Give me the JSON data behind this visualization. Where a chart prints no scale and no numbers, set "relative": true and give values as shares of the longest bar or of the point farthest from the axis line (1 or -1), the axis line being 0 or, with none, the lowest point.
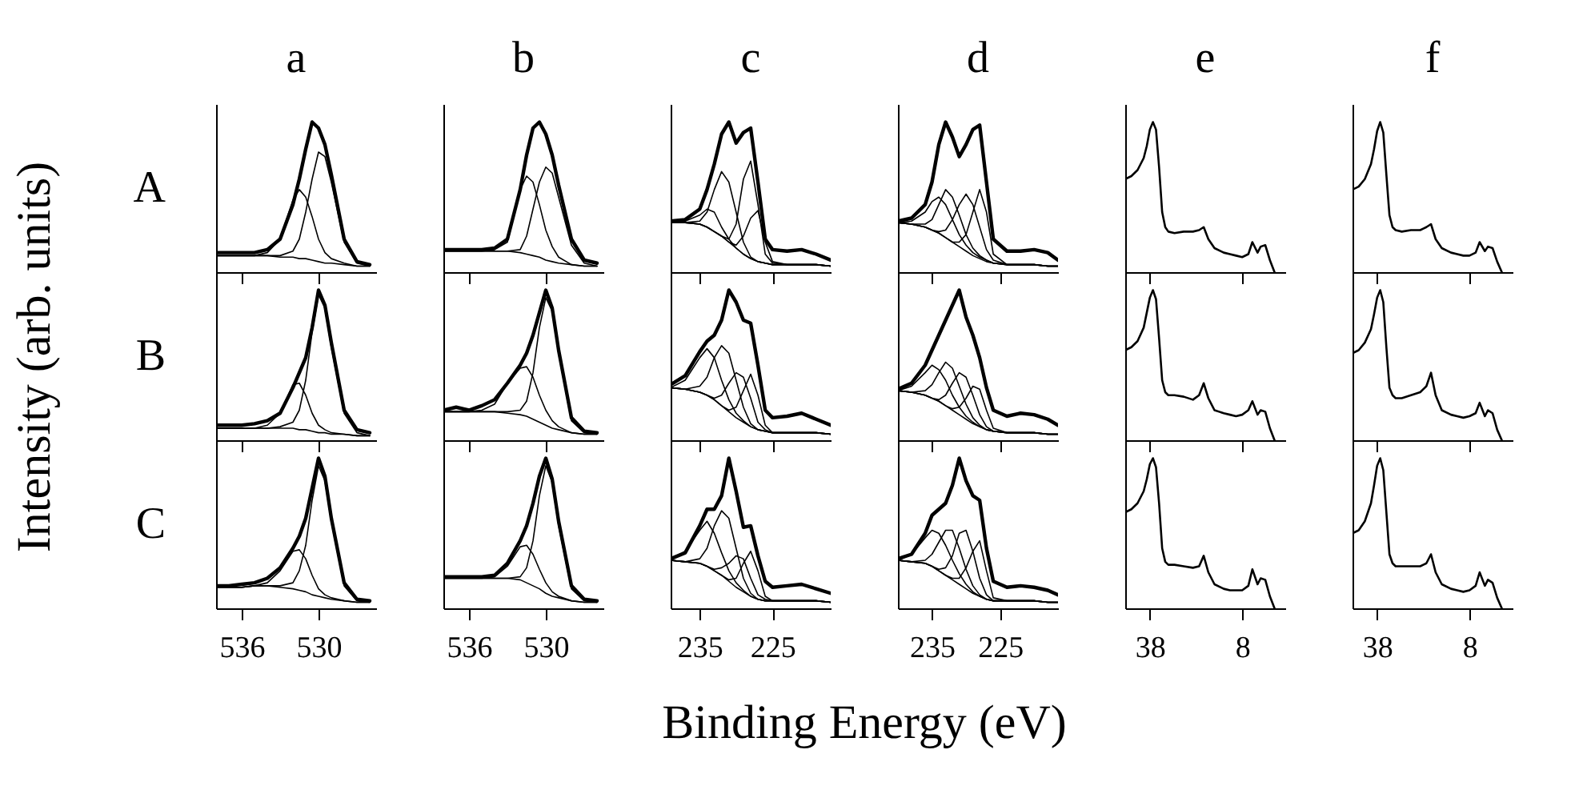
{
  "chart_data": [
    {
      "type": "line",
      "relative": true,
      "title": "a",
      "ylabel": "A",
      "annotations": [
        "Intensity (arb. units)",
        "Binding Energy (eV)"
      ],
      "x": [
        538,
        537,
        536,
        535,
        534,
        533,
        532,
        531.5,
        531,
        530.5,
        530,
        529.5,
        529,
        528,
        527,
        526
      ],
      "xlim": [
        538,
        525.5
      ],
      "xticks": [
        536,
        530
      ],
      "tick_labels": false,
      "series": [
        {
          "color": "#000000",
          "values": [
            0.13,
            0.13,
            0.13,
            0.13,
            0.15,
            0.22,
            0.45,
            0.62,
            0.82,
            1.0,
            0.96,
            0.85,
            0.65,
            0.22,
            0.07,
            0.05
          ]
        },
        {
          "color": "#000000",
          "values": [
            0.11,
            0.11,
            0.11,
            0.11,
            0.11,
            0.1,
            0.1,
            0.09,
            0.09,
            0.08,
            0.07,
            0.06,
            0.06,
            0.05,
            0.04,
            0.04
          ]
        },
        {
          "color": "#000000",
          "values": [
            0.11,
            0.11,
            0.11,
            0.11,
            0.13,
            0.22,
            0.48,
            0.55,
            0.5,
            0.37,
            0.22,
            0.13,
            0.09,
            0.06,
            0.04,
            0.04
          ]
        },
        {
          "color": "#000000",
          "values": [
            0.11,
            0.11,
            0.11,
            0.11,
            0.11,
            0.11,
            0.14,
            0.22,
            0.4,
            0.62,
            0.8,
            0.77,
            0.6,
            0.2,
            0.06,
            0.04
          ]
        }
      ]
    },
    {
      "type": "line",
      "relative": true,
      "title": "b",
      "x": [
        538,
        537,
        536,
        535,
        534,
        533,
        532,
        531.5,
        531,
        530.5,
        530,
        529.5,
        529,
        528,
        527,
        526
      ],
      "xlim": [
        538,
        525.5
      ],
      "xticks": [
        536,
        530
      ],
      "tick_labels": false,
      "series": [
        {
          "color": "#000000",
          "values": [
            0.15,
            0.15,
            0.15,
            0.15,
            0.16,
            0.22,
            0.55,
            0.78,
            0.96,
            1.0,
            0.92,
            0.78,
            0.58,
            0.22,
            0.08,
            0.06
          ]
        },
        {
          "color": "#000000",
          "values": [
            0.14,
            0.14,
            0.14,
            0.14,
            0.14,
            0.14,
            0.13,
            0.12,
            0.11,
            0.1,
            0.08,
            0.07,
            0.06,
            0.05,
            0.04,
            0.04
          ]
        },
        {
          "color": "#000000",
          "values": [
            0.14,
            0.14,
            0.14,
            0.14,
            0.15,
            0.2,
            0.55,
            0.64,
            0.6,
            0.45,
            0.28,
            0.17,
            0.1,
            0.05,
            0.04,
            0.04
          ]
        },
        {
          "color": "#000000",
          "values": [
            0.14,
            0.14,
            0.14,
            0.14,
            0.14,
            0.14,
            0.15,
            0.24,
            0.42,
            0.6,
            0.7,
            0.66,
            0.5,
            0.18,
            0.06,
            0.04
          ]
        }
      ]
    },
    {
      "type": "line",
      "relative": true,
      "title": "c",
      "x": [
        239,
        237,
        235,
        234,
        233,
        232,
        231,
        230,
        229,
        228,
        227,
        226,
        225,
        223,
        221,
        219,
        217
      ],
      "xlim": [
        239,
        217
      ],
      "xticks": [
        235,
        225
      ],
      "tick_labels": false,
      "series": [
        {
          "color": "#000000",
          "values": [
            0.34,
            0.35,
            0.42,
            0.55,
            0.72,
            0.92,
            1.0,
            0.86,
            0.93,
            0.96,
            0.6,
            0.22,
            0.15,
            0.14,
            0.15,
            0.12,
            0.08
          ]
        },
        {
          "color": "#000000",
          "values": [
            0.33,
            0.33,
            0.32,
            0.3,
            0.27,
            0.24,
            0.2,
            0.16,
            0.12,
            0.09,
            0.07,
            0.06,
            0.05,
            0.05,
            0.05,
            0.05,
            0.04
          ]
        },
        {
          "color": "#000000",
          "values": [
            0.33,
            0.34,
            0.38,
            0.42,
            0.4,
            0.3,
            0.22,
            0.16,
            0.12,
            0.09,
            0.07,
            0.06,
            0.05,
            0.05,
            0.05,
            0.05,
            0.04
          ]
        },
        {
          "color": "#000000",
          "values": [
            0.33,
            0.33,
            0.34,
            0.4,
            0.55,
            0.67,
            0.6,
            0.4,
            0.2,
            0.1,
            0.07,
            0.06,
            0.05,
            0.05,
            0.05,
            0.05,
            0.04
          ]
        },
        {
          "color": "#000000",
          "values": [
            0.33,
            0.33,
            0.32,
            0.3,
            0.27,
            0.24,
            0.22,
            0.32,
            0.62,
            0.74,
            0.45,
            0.12,
            0.06,
            0.05,
            0.05,
            0.05,
            0.04
          ]
        },
        {
          "color": "#000000",
          "values": [
            0.33,
            0.33,
            0.32,
            0.3,
            0.27,
            0.24,
            0.2,
            0.18,
            0.24,
            0.36,
            0.41,
            0.2,
            0.07,
            0.05,
            0.05,
            0.05,
            0.04
          ]
        }
      ]
    },
    {
      "type": "line",
      "relative": true,
      "title": "d",
      "x": [
        240,
        238,
        236,
        235,
        234,
        233,
        232,
        231,
        230,
        229,
        228,
        227,
        226,
        224,
        222,
        220,
        218,
        216.5
      ],
      "xlim": [
        240,
        216.5
      ],
      "xticks": [
        235,
        225
      ],
      "tick_labels": false,
      "series": [
        {
          "color": "#000000",
          "values": [
            0.34,
            0.36,
            0.45,
            0.6,
            0.85,
            1.0,
            0.9,
            0.77,
            0.85,
            0.95,
            0.98,
            0.6,
            0.22,
            0.14,
            0.14,
            0.15,
            0.13,
            0.08
          ]
        },
        {
          "color": "#000000",
          "values": [
            0.33,
            0.32,
            0.3,
            0.28,
            0.26,
            0.23,
            0.2,
            0.17,
            0.14,
            0.11,
            0.09,
            0.07,
            0.06,
            0.05,
            0.05,
            0.05,
            0.04,
            0.04
          ]
        },
        {
          "color": "#000000",
          "values": [
            0.33,
            0.34,
            0.4,
            0.47,
            0.5,
            0.45,
            0.35,
            0.25,
            0.18,
            0.13,
            0.1,
            0.08,
            0.06,
            0.05,
            0.05,
            0.05,
            0.04,
            0.04
          ]
        },
        {
          "color": "#000000",
          "values": [
            0.33,
            0.32,
            0.32,
            0.35,
            0.45,
            0.55,
            0.5,
            0.38,
            0.25,
            0.16,
            0.11,
            0.08,
            0.06,
            0.05,
            0.05,
            0.05,
            0.04,
            0.04
          ]
        },
        {
          "color": "#000000",
          "values": [
            0.33,
            0.32,
            0.3,
            0.28,
            0.27,
            0.28,
            0.35,
            0.45,
            0.52,
            0.45,
            0.3,
            0.15,
            0.08,
            0.05,
            0.05,
            0.05,
            0.04,
            0.04
          ]
        },
        {
          "color": "#000000",
          "values": [
            0.33,
            0.32,
            0.3,
            0.28,
            0.26,
            0.23,
            0.2,
            0.2,
            0.25,
            0.4,
            0.55,
            0.4,
            0.12,
            0.05,
            0.05,
            0.05,
            0.04,
            0.04
          ]
        }
      ]
    },
    {
      "type": "line",
      "relative": true,
      "title": "e",
      "x": [
        46,
        44,
        42,
        40,
        39,
        38,
        37,
        36,
        35,
        34,
        33,
        32,
        30,
        27,
        24,
        22,
        20.5,
        19,
        17,
        14,
        12,
        10,
        8,
        6,
        4.7,
        3,
        2,
        0.5,
        -1,
        -2.5
      ],
      "xlim": [
        46,
        -6
      ],
      "xticks": [
        38,
        8
      ],
      "tick_labels": false,
      "series": [
        {
          "color": "#000000",
          "values": [
            0.62,
            0.64,
            0.68,
            0.76,
            0.84,
            0.95,
            1.0,
            0.95,
            0.7,
            0.4,
            0.3,
            0.27,
            0.26,
            0.27,
            0.27,
            0.28,
            0.3,
            0.22,
            0.16,
            0.13,
            0.12,
            0.11,
            0.1,
            0.12,
            0.2,
            0.13,
            0.17,
            0.18,
            0.08,
            0.0
          ]
        }
      ]
    },
    {
      "type": "line",
      "relative": true,
      "title": "f",
      "x": [
        46,
        44,
        42,
        40,
        39,
        38,
        37,
        36,
        35,
        34,
        33,
        32,
        30,
        27,
        24,
        22,
        20.5,
        19,
        17,
        14,
        12,
        10,
        8,
        6,
        4.7,
        3,
        2,
        0.5,
        -1,
        -2.5
      ],
      "xlim": [
        46,
        -6
      ],
      "xticks": [
        38,
        8
      ],
      "tick_labels": false,
      "series": [
        {
          "color": "#000000",
          "values": [
            0.55,
            0.57,
            0.62,
            0.72,
            0.82,
            0.94,
            1.0,
            0.93,
            0.65,
            0.38,
            0.3,
            0.28,
            0.27,
            0.28,
            0.28,
            0.3,
            0.32,
            0.22,
            0.16,
            0.13,
            0.12,
            0.11,
            0.11,
            0.13,
            0.2,
            0.14,
            0.17,
            0.16,
            0.07,
            0.0
          ]
        }
      ]
    },
    {
      "type": "line",
      "relative": true,
      "ylabel": "B",
      "x": [
        538,
        537,
        536,
        535,
        534,
        533,
        532,
        531.5,
        531,
        530.5,
        530,
        529.5,
        529,
        528,
        527,
        526
      ],
      "xlim": [
        538,
        525.5
      ],
      "xticks": [
        536,
        530
      ],
      "tick_labels": false,
      "series": [
        {
          "color": "#000000",
          "values": [
            0.1,
            0.1,
            0.1,
            0.11,
            0.13,
            0.18,
            0.35,
            0.45,
            0.55,
            0.75,
            1.0,
            0.9,
            0.65,
            0.2,
            0.07,
            0.05
          ]
        },
        {
          "color": "#000000",
          "values": [
            0.08,
            0.08,
            0.08,
            0.08,
            0.08,
            0.08,
            0.08,
            0.07,
            0.07,
            0.06,
            0.05,
            0.05,
            0.04,
            0.04,
            0.03,
            0.03
          ]
        },
        {
          "color": "#000000",
          "values": [
            0.08,
            0.08,
            0.08,
            0.08,
            0.1,
            0.18,
            0.37,
            0.38,
            0.3,
            0.18,
            0.1,
            0.07,
            0.05,
            0.04,
            0.03,
            0.03
          ]
        },
        {
          "color": "#000000",
          "values": [
            0.08,
            0.08,
            0.08,
            0.08,
            0.08,
            0.09,
            0.12,
            0.2,
            0.4,
            0.72,
            0.97,
            0.88,
            0.62,
            0.18,
            0.05,
            0.03
          ]
        }
      ]
    },
    {
      "type": "line",
      "relative": true,
      "x": [
        538,
        537,
        536,
        535,
        534,
        533,
        532,
        531.5,
        531,
        530.5,
        530,
        529.5,
        529,
        528,
        527,
        526
      ],
      "xlim": [
        538,
        525.5
      ],
      "xticks": [
        536,
        530
      ],
      "tick_labels": false,
      "series": [
        {
          "color": "#000000",
          "values": [
            0.2,
            0.22,
            0.2,
            0.23,
            0.27,
            0.38,
            0.5,
            0.58,
            0.7,
            0.85,
            1.0,
            0.88,
            0.6,
            0.15,
            0.06,
            0.05
          ]
        },
        {
          "color": "#000000",
          "values": [
            0.19,
            0.19,
            0.19,
            0.19,
            0.19,
            0.18,
            0.17,
            0.16,
            0.14,
            0.12,
            0.1,
            0.08,
            0.07,
            0.05,
            0.04,
            0.04
          ]
        },
        {
          "color": "#000000",
          "values": [
            0.19,
            0.19,
            0.19,
            0.2,
            0.24,
            0.38,
            0.48,
            0.49,
            0.42,
            0.3,
            0.2,
            0.13,
            0.09,
            0.05,
            0.04,
            0.04
          ]
        },
        {
          "color": "#000000",
          "values": [
            0.19,
            0.19,
            0.19,
            0.19,
            0.19,
            0.19,
            0.2,
            0.26,
            0.45,
            0.75,
            0.95,
            0.86,
            0.58,
            0.13,
            0.05,
            0.04
          ]
        }
      ]
    },
    {
      "type": "line",
      "relative": true,
      "x": [
        239,
        237,
        235,
        234,
        233,
        232,
        231,
        230,
        229,
        228,
        227,
        226,
        225,
        223,
        221,
        219,
        217
      ],
      "xlim": [
        239,
        217
      ],
      "xticks": [
        235,
        225
      ],
      "tick_labels": false,
      "series": [
        {
          "color": "#000000",
          "values": [
            0.37,
            0.43,
            0.59,
            0.66,
            0.7,
            0.8,
            1.0,
            0.92,
            0.8,
            0.78,
            0.5,
            0.2,
            0.15,
            0.16,
            0.18,
            0.14,
            0.1
          ]
        },
        {
          "color": "#000000",
          "values": [
            0.35,
            0.34,
            0.32,
            0.3,
            0.27,
            0.23,
            0.19,
            0.15,
            0.12,
            0.09,
            0.07,
            0.06,
            0.05,
            0.05,
            0.05,
            0.05,
            0.04
          ]
        },
        {
          "color": "#000000",
          "values": [
            0.35,
            0.4,
            0.55,
            0.61,
            0.55,
            0.4,
            0.27,
            0.18,
            0.13,
            0.09,
            0.07,
            0.06,
            0.05,
            0.05,
            0.05,
            0.05,
            0.04
          ]
        },
        {
          "color": "#000000",
          "values": [
            0.35,
            0.34,
            0.36,
            0.42,
            0.55,
            0.63,
            0.58,
            0.4,
            0.22,
            0.11,
            0.07,
            0.06,
            0.05,
            0.05,
            0.05,
            0.05,
            0.04
          ]
        },
        {
          "color": "#000000",
          "values": [
            0.35,
            0.34,
            0.32,
            0.3,
            0.28,
            0.3,
            0.38,
            0.45,
            0.42,
            0.28,
            0.12,
            0.07,
            0.05,
            0.05,
            0.05,
            0.05,
            0.04
          ]
        },
        {
          "color": "#000000",
          "values": [
            0.35,
            0.34,
            0.32,
            0.3,
            0.27,
            0.23,
            0.2,
            0.22,
            0.33,
            0.44,
            0.3,
            0.1,
            0.05,
            0.05,
            0.05,
            0.05,
            0.04
          ]
        }
      ]
    },
    {
      "type": "line",
      "relative": true,
      "x": [
        240,
        238,
        236,
        235,
        234,
        233,
        232,
        231,
        230,
        229,
        228,
        227,
        226,
        224,
        222,
        220,
        218,
        216.5
      ],
      "xlim": [
        240,
        216.5
      ],
      "xticks": [
        235,
        225
      ],
      "tick_labels": false,
      "series": [
        {
          "color": "#000000",
          "values": [
            0.34,
            0.38,
            0.5,
            0.6,
            0.7,
            0.8,
            0.9,
            1.0,
            0.82,
            0.7,
            0.55,
            0.35,
            0.2,
            0.16,
            0.18,
            0.17,
            0.14,
            0.1
          ]
        },
        {
          "color": "#000000",
          "values": [
            0.33,
            0.32,
            0.3,
            0.28,
            0.26,
            0.23,
            0.2,
            0.17,
            0.14,
            0.11,
            0.09,
            0.07,
            0.06,
            0.05,
            0.05,
            0.05,
            0.04,
            0.04
          ]
        },
        {
          "color": "#000000",
          "values": [
            0.33,
            0.36,
            0.45,
            0.5,
            0.47,
            0.4,
            0.3,
            0.22,
            0.16,
            0.12,
            0.09,
            0.07,
            0.06,
            0.05,
            0.05,
            0.05,
            0.04,
            0.04
          ]
        },
        {
          "color": "#000000",
          "values": [
            0.33,
            0.32,
            0.33,
            0.37,
            0.45,
            0.52,
            0.48,
            0.36,
            0.24,
            0.15,
            0.1,
            0.07,
            0.06,
            0.05,
            0.05,
            0.05,
            0.04,
            0.04
          ]
        },
        {
          "color": "#000000",
          "values": [
            0.33,
            0.32,
            0.3,
            0.28,
            0.27,
            0.3,
            0.38,
            0.45,
            0.42,
            0.3,
            0.17,
            0.09,
            0.06,
            0.05,
            0.05,
            0.05,
            0.04,
            0.04
          ]
        },
        {
          "color": "#000000",
          "values": [
            0.33,
            0.32,
            0.3,
            0.28,
            0.26,
            0.23,
            0.21,
            0.22,
            0.28,
            0.36,
            0.34,
            0.2,
            0.08,
            0.05,
            0.05,
            0.05,
            0.04,
            0.04
          ]
        }
      ]
    },
    {
      "type": "line",
      "relative": true,
      "x": [
        46,
        44,
        42,
        40,
        39,
        38,
        37,
        36,
        35,
        34,
        33,
        32,
        30,
        27,
        24,
        22,
        20.5,
        19,
        17,
        14,
        12,
        10,
        8,
        6,
        4.7,
        3,
        2,
        0.5,
        -1,
        -2.5
      ],
      "xlim": [
        46,
        -6
      ],
      "xticks": [
        38,
        8
      ],
      "tick_labels": false,
      "series": [
        {
          "color": "#000000",
          "values": [
            0.6,
            0.62,
            0.66,
            0.75,
            0.85,
            0.95,
            1.0,
            0.94,
            0.68,
            0.4,
            0.32,
            0.3,
            0.3,
            0.29,
            0.27,
            0.3,
            0.38,
            0.28,
            0.2,
            0.18,
            0.17,
            0.16,
            0.17,
            0.2,
            0.26,
            0.17,
            0.2,
            0.19,
            0.08,
            0.0
          ]
        }
      ]
    },
    {
      "type": "line",
      "relative": true,
      "x": [
        46,
        44,
        42,
        40,
        39,
        38,
        37,
        36,
        35,
        34,
        33,
        32,
        30,
        27,
        24,
        22,
        20.5,
        19,
        17,
        14,
        12,
        10,
        8,
        6,
        4.7,
        3,
        2,
        0.5,
        -1,
        -2.5
      ],
      "xlim": [
        46,
        -6
      ],
      "xticks": [
        38,
        8
      ],
      "tick_labels": false,
      "series": [
        {
          "color": "#000000",
          "values": [
            0.58,
            0.6,
            0.65,
            0.74,
            0.84,
            0.95,
            1.0,
            0.92,
            0.62,
            0.35,
            0.3,
            0.28,
            0.28,
            0.3,
            0.32,
            0.36,
            0.45,
            0.3,
            0.2,
            0.17,
            0.16,
            0.15,
            0.16,
            0.18,
            0.25,
            0.16,
            0.2,
            0.18,
            0.07,
            0.0
          ]
        }
      ]
    },
    {
      "type": "line",
      "relative": true,
      "ylabel": "C",
      "x": [
        538,
        537,
        536,
        535,
        534,
        533,
        532,
        531.5,
        531,
        530.5,
        530,
        529.5,
        529,
        528,
        527,
        526
      ],
      "xlim": [
        538,
        525.5
      ],
      "xticks": [
        536,
        530
      ],
      "tick_labels": "x",
      "series": [
        {
          "color": "#000000",
          "values": [
            0.15,
            0.15,
            0.16,
            0.17,
            0.2,
            0.27,
            0.4,
            0.48,
            0.6,
            0.8,
            1.0,
            0.88,
            0.6,
            0.17,
            0.06,
            0.05
          ]
        },
        {
          "color": "#000000",
          "values": [
            0.14,
            0.14,
            0.14,
            0.15,
            0.15,
            0.14,
            0.13,
            0.12,
            0.11,
            0.09,
            0.08,
            0.07,
            0.06,
            0.05,
            0.04,
            0.04
          ]
        },
        {
          "color": "#000000",
          "values": [
            0.14,
            0.14,
            0.14,
            0.15,
            0.17,
            0.25,
            0.38,
            0.39,
            0.33,
            0.22,
            0.13,
            0.09,
            0.07,
            0.05,
            0.04,
            0.04
          ]
        },
        {
          "color": "#000000",
          "values": [
            0.14,
            0.14,
            0.14,
            0.15,
            0.15,
            0.15,
            0.17,
            0.25,
            0.42,
            0.72,
            0.95,
            0.85,
            0.58,
            0.15,
            0.05,
            0.04
          ]
        }
      ]
    },
    {
      "type": "line",
      "relative": true,
      "x": [
        538,
        537,
        536,
        535,
        534,
        533,
        532,
        531.5,
        531,
        530.5,
        530,
        529.5,
        529,
        528,
        527,
        526
      ],
      "xlim": [
        538,
        525.5
      ],
      "xticks": [
        536,
        530
      ],
      "tick_labels": "x",
      "series": [
        {
          "color": "#000000",
          "values": [
            0.21,
            0.21,
            0.21,
            0.21,
            0.22,
            0.3,
            0.45,
            0.55,
            0.7,
            0.88,
            1.0,
            0.86,
            0.58,
            0.15,
            0.06,
            0.05
          ]
        },
        {
          "color": "#000000",
          "values": [
            0.2,
            0.2,
            0.2,
            0.2,
            0.2,
            0.2,
            0.19,
            0.17,
            0.15,
            0.13,
            0.1,
            0.08,
            0.07,
            0.05,
            0.04,
            0.04
          ]
        },
        {
          "color": "#000000",
          "values": [
            0.2,
            0.2,
            0.2,
            0.2,
            0.21,
            0.28,
            0.41,
            0.42,
            0.36,
            0.26,
            0.17,
            0.11,
            0.08,
            0.05,
            0.04,
            0.04
          ]
        },
        {
          "color": "#000000",
          "values": [
            0.2,
            0.2,
            0.2,
            0.2,
            0.2,
            0.2,
            0.21,
            0.27,
            0.45,
            0.75,
            0.95,
            0.84,
            0.55,
            0.13,
            0.05,
            0.04
          ]
        }
      ]
    },
    {
      "type": "line",
      "relative": true,
      "x": [
        239,
        237,
        235,
        234,
        233,
        232,
        231,
        230,
        229,
        228,
        227,
        226,
        225,
        223,
        221,
        219,
        217
      ],
      "xlim": [
        239,
        217
      ],
      "xticks": [
        235,
        225
      ],
      "tick_labels": "x",
      "series": [
        {
          "color": "#000000",
          "values": [
            0.33,
            0.37,
            0.55,
            0.66,
            0.66,
            0.75,
            1.0,
            0.78,
            0.54,
            0.55,
            0.35,
            0.18,
            0.14,
            0.15,
            0.16,
            0.13,
            0.1
          ]
        },
        {
          "color": "#000000",
          "values": [
            0.32,
            0.31,
            0.3,
            0.28,
            0.25,
            0.22,
            0.18,
            0.14,
            0.11,
            0.08,
            0.06,
            0.05,
            0.05,
            0.05,
            0.05,
            0.05,
            0.04
          ]
        },
        {
          "color": "#000000",
          "values": [
            0.32,
            0.38,
            0.52,
            0.58,
            0.5,
            0.37,
            0.25,
            0.17,
            0.12,
            0.08,
            0.06,
            0.05,
            0.05,
            0.05,
            0.05,
            0.05,
            0.04
          ]
        },
        {
          "color": "#000000",
          "values": [
            0.32,
            0.31,
            0.33,
            0.4,
            0.55,
            0.65,
            0.6,
            0.4,
            0.2,
            0.1,
            0.06,
            0.05,
            0.05,
            0.05,
            0.05,
            0.05,
            0.04
          ]
        },
        {
          "color": "#000000",
          "values": [
            0.32,
            0.31,
            0.3,
            0.28,
            0.26,
            0.27,
            0.3,
            0.35,
            0.33,
            0.2,
            0.09,
            0.06,
            0.05,
            0.05,
            0.05,
            0.05,
            0.04
          ]
        },
        {
          "color": "#000000",
          "values": [
            0.32,
            0.31,
            0.3,
            0.28,
            0.25,
            0.22,
            0.19,
            0.2,
            0.3,
            0.38,
            0.25,
            0.08,
            0.05,
            0.05,
            0.05,
            0.05,
            0.04
          ]
        }
      ]
    },
    {
      "type": "line",
      "relative": true,
      "x": [
        240,
        238,
        236,
        235,
        234,
        233,
        232,
        231,
        230,
        229,
        228,
        227,
        226,
        224,
        222,
        220,
        218,
        216.5
      ],
      "xlim": [
        240,
        216.5
      ],
      "xticks": [
        235,
        225
      ],
      "tick_labels": "x",
      "series": [
        {
          "color": "#000000",
          "values": [
            0.33,
            0.36,
            0.5,
            0.62,
            0.66,
            0.7,
            0.82,
            1.0,
            0.85,
            0.75,
            0.72,
            0.4,
            0.18,
            0.14,
            0.15,
            0.14,
            0.12,
            0.09
          ]
        },
        {
          "color": "#000000",
          "values": [
            0.32,
            0.31,
            0.3,
            0.28,
            0.25,
            0.22,
            0.19,
            0.16,
            0.13,
            0.1,
            0.08,
            0.06,
            0.05,
            0.05,
            0.05,
            0.05,
            0.04,
            0.04
          ]
        },
        {
          "color": "#000000",
          "values": [
            0.32,
            0.36,
            0.47,
            0.52,
            0.5,
            0.42,
            0.32,
            0.23,
            0.16,
            0.11,
            0.08,
            0.06,
            0.05,
            0.05,
            0.05,
            0.05,
            0.04,
            0.04
          ]
        },
        {
          "color": "#000000",
          "values": [
            0.32,
            0.31,
            0.32,
            0.36,
            0.44,
            0.52,
            0.52,
            0.4,
            0.26,
            0.15,
            0.09,
            0.06,
            0.05,
            0.05,
            0.05,
            0.05,
            0.04,
            0.04
          ]
        },
        {
          "color": "#000000",
          "values": [
            0.32,
            0.31,
            0.3,
            0.28,
            0.26,
            0.27,
            0.35,
            0.5,
            0.52,
            0.38,
            0.2,
            0.09,
            0.05,
            0.05,
            0.05,
            0.05,
            0.04,
            0.04
          ]
        },
        {
          "color": "#000000",
          "values": [
            0.32,
            0.31,
            0.3,
            0.28,
            0.25,
            0.22,
            0.2,
            0.2,
            0.27,
            0.38,
            0.45,
            0.25,
            0.07,
            0.05,
            0.05,
            0.05,
            0.04,
            0.04
          ]
        }
      ]
    },
    {
      "type": "line",
      "relative": true,
      "x": [
        46,
        44,
        42,
        40,
        39,
        38,
        37,
        36,
        35,
        34,
        33,
        32,
        30,
        27,
        24,
        22,
        20.5,
        19,
        17,
        14,
        12,
        10,
        8,
        6,
        4.7,
        3,
        2,
        0.5,
        -1,
        -2.5
      ],
      "xlim": [
        46,
        -6
      ],
      "xticks": [
        38,
        8
      ],
      "tick_labels": "x",
      "series": [
        {
          "color": "#000000",
          "values": [
            0.64,
            0.66,
            0.7,
            0.78,
            0.86,
            0.96,
            1.0,
            0.94,
            0.7,
            0.4,
            0.31,
            0.29,
            0.29,
            0.28,
            0.27,
            0.28,
            0.35,
            0.24,
            0.16,
            0.13,
            0.12,
            0.12,
            0.12,
            0.15,
            0.26,
            0.16,
            0.2,
            0.19,
            0.08,
            0.0
          ]
        }
      ]
    },
    {
      "type": "line",
      "relative": true,
      "x": [
        46,
        44,
        42,
        40,
        39,
        38,
        37,
        36,
        35,
        34,
        33,
        32,
        30,
        27,
        24,
        22,
        20.5,
        19,
        17,
        14,
        12,
        10,
        8,
        6,
        4.7,
        3,
        2,
        0.5,
        -1,
        -2.5
      ],
      "xlim": [
        46,
        -6
      ],
      "xticks": [
        38,
        8
      ],
      "tick_labels": "x",
      "series": [
        {
          "color": "#000000",
          "values": [
            0.5,
            0.52,
            0.58,
            0.7,
            0.82,
            0.95,
            1.0,
            0.92,
            0.64,
            0.36,
            0.3,
            0.28,
            0.28,
            0.28,
            0.28,
            0.3,
            0.36,
            0.24,
            0.16,
            0.13,
            0.12,
            0.11,
            0.12,
            0.15,
            0.24,
            0.15,
            0.19,
            0.17,
            0.07,
            0.0
          ]
        }
      ]
    }
  ]
}
